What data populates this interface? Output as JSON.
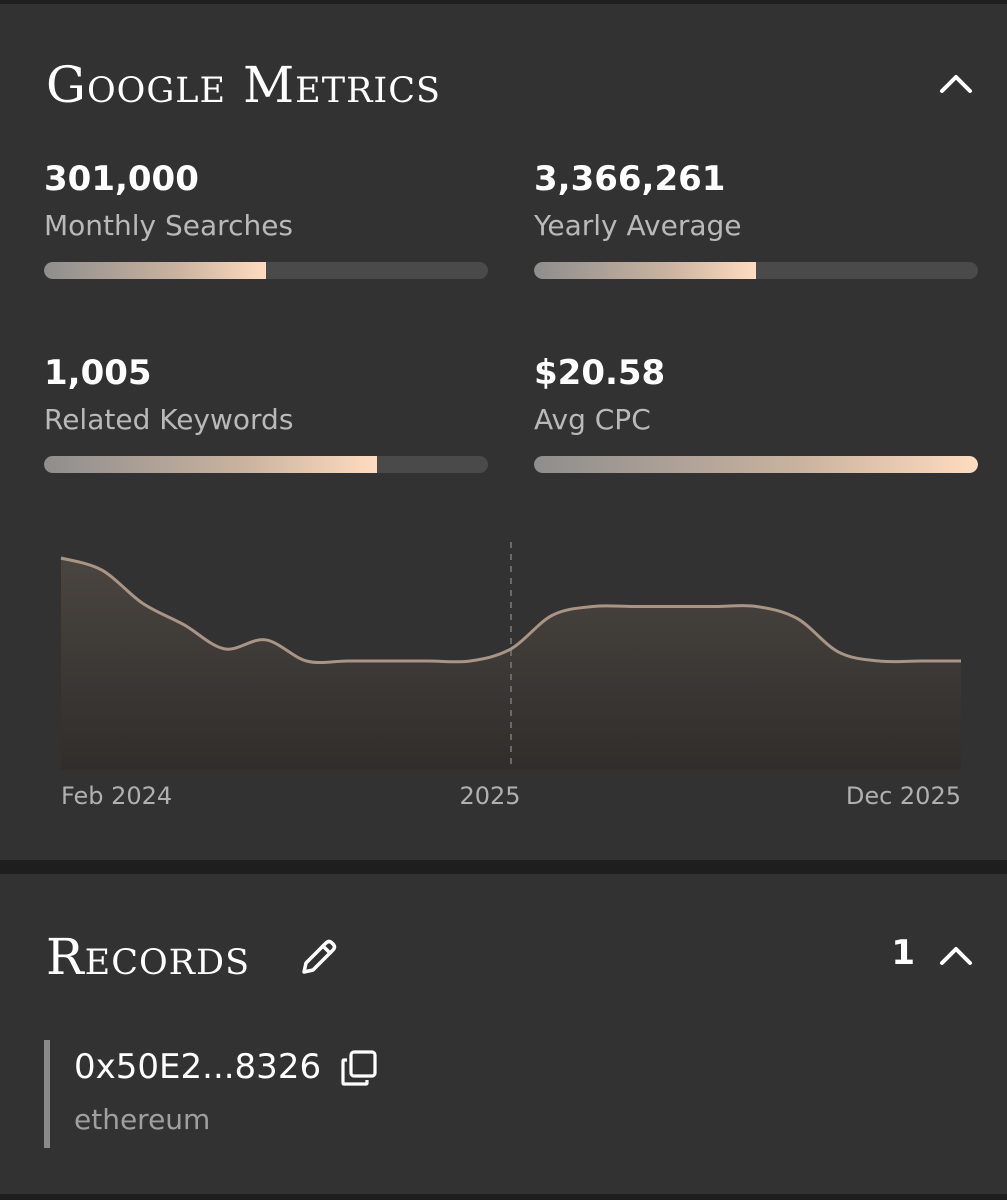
{
  "metrics_section": {
    "title": "Google Metrics",
    "collapse_icon": "chevron-up-icon",
    "items": [
      {
        "value": "301,000",
        "label": "Monthly Searches",
        "bar_fraction": 0.5
      },
      {
        "value": "3,366,261",
        "label": "Yearly Average",
        "bar_fraction": 0.5
      },
      {
        "value": "1,005",
        "label": "Related Keywords",
        "bar_fraction": 0.75
      },
      {
        "value": "$20.58",
        "label": "Avg CPC",
        "bar_fraction": 1.0
      }
    ],
    "bar_gradient": [
      "#8e8e8e",
      "#c9b39f",
      "#ffdcc0"
    ]
  },
  "chart_data": {
    "type": "area",
    "title": "",
    "xlabel": "",
    "ylabel": "",
    "x_tick_labels": [
      "Feb 2024",
      "2025",
      "Dec 2025"
    ],
    "x": [
      "2024-02",
      "2024-03",
      "2024-04",
      "2024-05",
      "2024-06",
      "2024-07",
      "2024-08",
      "2024-09",
      "2024-10",
      "2024-11",
      "2024-12",
      "2025-01",
      "2025-02",
      "2025-03",
      "2025-04",
      "2025-05",
      "2025-06",
      "2025-07",
      "2025-08",
      "2025-09",
      "2025-10",
      "2025-11",
      "2025-12"
    ],
    "y_relative": [
      1.0,
      0.96,
      0.85,
      0.78,
      0.7,
      0.73,
      0.66,
      0.66,
      0.66,
      0.66,
      0.66,
      0.7,
      0.81,
      0.84,
      0.84,
      0.84,
      0.84,
      0.84,
      0.8,
      0.69,
      0.66,
      0.66,
      0.66
    ],
    "reference_line_x": "2025-01",
    "grid": false,
    "legend": false,
    "line_color": "#a89585",
    "fill_colors": [
      "#4a4540",
      "#302d2b"
    ]
  },
  "records_section": {
    "title": "Records",
    "edit_icon": "pencil-icon",
    "count": "1",
    "collapse_icon": "chevron-up-icon",
    "items": [
      {
        "address": "0x50E2...8326",
        "network": "ethereum",
        "copy_icon": "copy-icon"
      }
    ]
  }
}
